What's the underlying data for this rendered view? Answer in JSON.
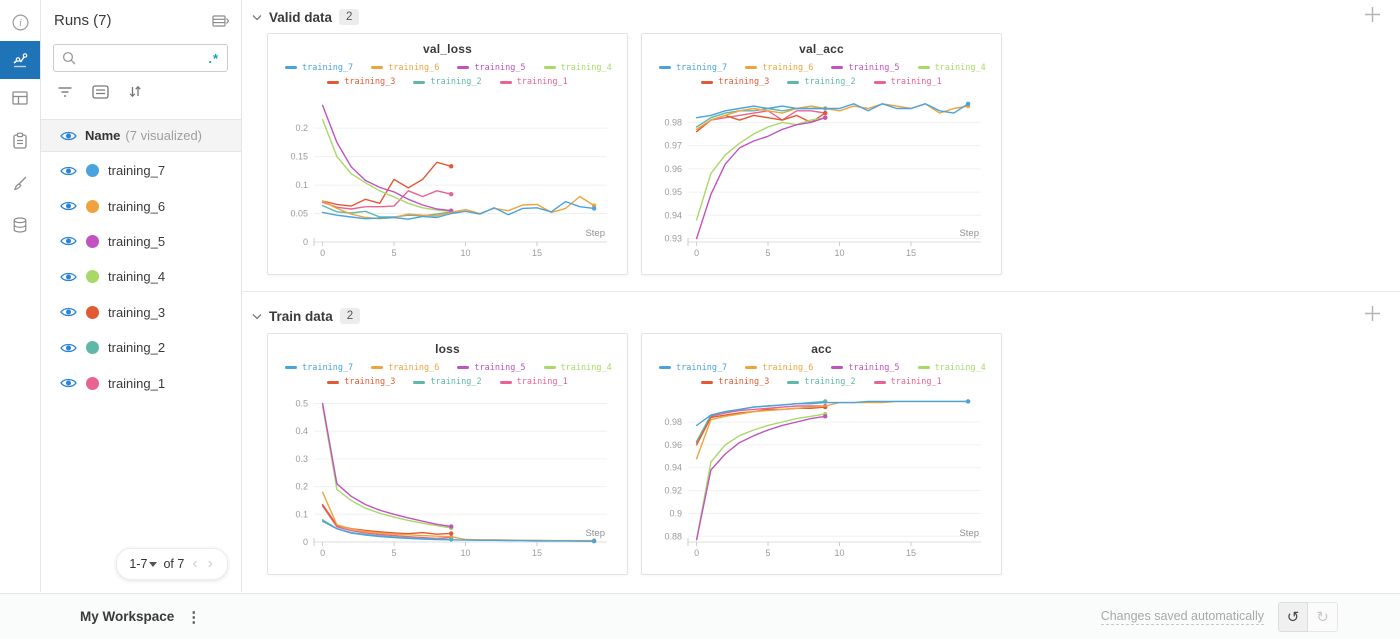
{
  "rail": {
    "icons": [
      "info-icon",
      "line-chart-icon",
      "panel-grid-icon",
      "clipboard-icon",
      "brush-icon",
      "database-icon"
    ],
    "active_color": "#1f73b7"
  },
  "icons": {
    "search-icon": "magnifier",
    "regex-icon": ".*",
    "filter-icon": "funnel-lines",
    "list-icon": "boxed-list",
    "sort-icon": "down-up-arrows",
    "eye-icon": "blue-eye",
    "chevron-down-icon": "v",
    "chevron-right-icon": "›",
    "chevron-left-icon": "‹",
    "plus-icon": "+",
    "kebab-icon": "⋮",
    "undo-icon": "↺",
    "redo-icon": "↻",
    "caret-down-icon": "▾",
    "table-expand-icon": "table+chevron"
  },
  "runs_panel": {
    "title": "Runs (7)",
    "search": {
      "placeholder": "",
      "regex_badge": ".*"
    },
    "header_row": {
      "label": "Name",
      "annotation": "(7 visualized)"
    },
    "runs": [
      {
        "name": "training_7",
        "color": "#4aa3df"
      },
      {
        "name": "training_6",
        "color": "#eea43c"
      },
      {
        "name": "training_5",
        "color": "#c153c1"
      },
      {
        "name": "training_4",
        "color": "#a8d966"
      },
      {
        "name": "training_3",
        "color": "#e25a33"
      },
      {
        "name": "training_2",
        "color": "#5fb8a6"
      },
      {
        "name": "training_1",
        "color": "#e8638f"
      }
    ],
    "pagination": {
      "range_label": "1-7",
      "of_label": "of 7"
    }
  },
  "sections": [
    {
      "title": "Valid data",
      "count": "2"
    },
    {
      "title": "Train data",
      "count": "2"
    }
  ],
  "footer": {
    "workspace_label": "My Workspace",
    "status_text": "Changes saved automatically"
  },
  "chart_data": [
    {
      "type": "line",
      "title": "val_loss",
      "xlabel": "Step",
      "legend_position": "top",
      "grid": "horizontal",
      "xticks": [
        0,
        5,
        10,
        15
      ],
      "xlim": [
        -0.6,
        19.9
      ],
      "yticks": [
        0,
        0.05,
        0.1,
        0.15,
        0.2
      ],
      "ylim": [
        0,
        0.253
      ],
      "series": [
        {
          "name": "training_7",
          "color": "#4aa3df",
          "values": [
            0.052,
            0.047,
            0.044,
            0.041,
            0.042,
            0.043,
            0.04,
            0.045,
            0.043,
            0.05,
            0.054,
            0.049,
            0.06,
            0.048,
            0.059,
            0.06,
            0.053,
            0.071,
            0.062,
            0.059
          ]
        },
        {
          "name": "training_6",
          "color": "#eea43c",
          "values": [
            0.072,
            0.059,
            0.049,
            0.043,
            0.041,
            0.043,
            0.049,
            0.047,
            0.046,
            0.052,
            0.057,
            0.05,
            0.059,
            0.055,
            0.065,
            0.066,
            0.052,
            0.059,
            0.08,
            0.064
          ]
        },
        {
          "name": "training_5",
          "color": "#c153c1",
          "values": [
            0.24,
            0.175,
            0.132,
            0.108,
            0.096,
            0.088,
            0.075,
            0.065,
            0.058,
            0.055
          ]
        },
        {
          "name": "training_4",
          "color": "#a8d966",
          "values": [
            0.215,
            0.15,
            0.12,
            0.104,
            0.09,
            0.079,
            0.068,
            0.06,
            0.056,
            0.054
          ]
        },
        {
          "name": "training_3",
          "color": "#e25a33",
          "values": [
            0.072,
            0.066,
            0.063,
            0.075,
            0.068,
            0.11,
            0.095,
            0.11,
            0.14,
            0.133
          ]
        },
        {
          "name": "training_2",
          "color": "#5fb8a6",
          "values": [
            0.064,
            0.053,
            0.051,
            0.054,
            0.044,
            0.044,
            0.047,
            0.046,
            0.049,
            0.053
          ]
        },
        {
          "name": "training_1",
          "color": "#e8638f",
          "values": [
            0.07,
            0.061,
            0.058,
            0.062,
            0.062,
            0.063,
            0.09,
            0.08,
            0.09,
            0.084
          ]
        }
      ]
    },
    {
      "type": "line",
      "title": "val_acc",
      "xlabel": "Step",
      "legend_position": "top",
      "grid": "horizontal",
      "xticks": [
        0,
        5,
        10,
        15
      ],
      "xlim": [
        -0.6,
        19.9
      ],
      "yticks": [
        0.93,
        0.94,
        0.95,
        0.96,
        0.97,
        0.98
      ],
      "ylim": [
        0.9285,
        0.9905
      ],
      "series": [
        {
          "name": "training_7",
          "color": "#4aa3df",
          "values": [
            0.982,
            0.983,
            0.985,
            0.986,
            0.987,
            0.986,
            0.987,
            0.986,
            0.986,
            0.986,
            0.986,
            0.988,
            0.985,
            0.988,
            0.986,
            0.986,
            0.988,
            0.985,
            0.984,
            0.988
          ]
        },
        {
          "name": "training_6",
          "color": "#eea43c",
          "values": [
            0.977,
            0.981,
            0.983,
            0.985,
            0.986,
            0.985,
            0.984,
            0.986,
            0.987,
            0.986,
            0.985,
            0.987,
            0.986,
            0.988,
            0.987,
            0.986,
            0.988,
            0.984,
            0.986,
            0.987
          ]
        },
        {
          "name": "training_5",
          "color": "#c153c1",
          "values": [
            0.93,
            0.949,
            0.962,
            0.969,
            0.972,
            0.974,
            0.977,
            0.979,
            0.98,
            0.982
          ]
        },
        {
          "name": "training_4",
          "color": "#a8d966",
          "values": [
            0.938,
            0.958,
            0.966,
            0.971,
            0.975,
            0.978,
            0.98,
            0.979,
            0.981,
            0.982
          ]
        },
        {
          "name": "training_3",
          "color": "#e25a33",
          "values": [
            0.976,
            0.981,
            0.983,
            0.981,
            0.983,
            0.982,
            0.981,
            0.983,
            0.98,
            0.984
          ]
        },
        {
          "name": "training_2",
          "color": "#5fb8a6",
          "values": [
            0.978,
            0.982,
            0.984,
            0.985,
            0.985,
            0.986,
            0.985,
            0.986,
            0.986,
            0.986
          ]
        },
        {
          "name": "training_1",
          "color": "#e8638f",
          "values": [
            0.977,
            0.981,
            0.982,
            0.983,
            0.984,
            0.985,
            0.981,
            0.985,
            0.985,
            0.984
          ]
        }
      ]
    },
    {
      "type": "line",
      "title": "loss",
      "xlabel": "Step",
      "legend_position": "top",
      "grid": "horizontal",
      "xticks": [
        0,
        5,
        10,
        15
      ],
      "xlim": [
        -0.6,
        19.9
      ],
      "yticks": [
        0,
        0.1,
        0.2,
        0.3,
        0.4,
        0.5
      ],
      "ylim": [
        0,
        0.52
      ],
      "series": [
        {
          "name": "training_7",
          "color": "#4aa3df",
          "values": [
            0.075,
            0.048,
            0.032,
            0.025,
            0.02,
            0.016,
            0.013,
            0.011,
            0.009,
            0.008,
            0.007,
            0.006,
            0.006,
            0.005,
            0.005,
            0.004,
            0.004,
            0.004,
            0.003,
            0.003
          ]
        },
        {
          "name": "training_6",
          "color": "#eea43c",
          "values": [
            0.18,
            0.062,
            0.047,
            0.038,
            0.032,
            0.028,
            0.026,
            0.023,
            0.021,
            0.019,
            0.009,
            0.008,
            0.008,
            0.007,
            0.006,
            0.006,
            0.005,
            0.005,
            0.005,
            0.005
          ]
        },
        {
          "name": "training_5",
          "color": "#c153c1",
          "values": [
            0.5,
            0.21,
            0.165,
            0.135,
            0.115,
            0.1,
            0.087,
            0.075,
            0.064,
            0.056
          ]
        },
        {
          "name": "training_4",
          "color": "#a8d966",
          "values": [
            0.49,
            0.19,
            0.15,
            0.122,
            0.104,
            0.09,
            0.078,
            0.068,
            0.059,
            0.051
          ]
        },
        {
          "name": "training_3",
          "color": "#e25a33",
          "values": [
            0.135,
            0.06,
            0.048,
            0.042,
            0.037,
            0.033,
            0.03,
            0.034,
            0.028,
            0.031
          ]
        },
        {
          "name": "training_2",
          "color": "#5fb8a6",
          "values": [
            0.08,
            0.048,
            0.034,
            0.027,
            0.022,
            0.018,
            0.015,
            0.012,
            0.01,
            0.009
          ]
        },
        {
          "name": "training_1",
          "color": "#e8638f",
          "values": [
            0.13,
            0.055,
            0.041,
            0.033,
            0.027,
            0.023,
            0.019,
            0.016,
            0.013,
            0.017
          ]
        }
      ]
    },
    {
      "type": "line",
      "title": "acc",
      "xlabel": "Step",
      "legend_position": "top",
      "grid": "horizontal",
      "xticks": [
        0,
        5,
        10,
        15
      ],
      "xlim": [
        -0.6,
        19.9
      ],
      "yticks": [
        0.88,
        0.9,
        0.92,
        0.94,
        0.96,
        0.98
      ],
      "ylim": [
        0.875,
        1.001
      ],
      "series": [
        {
          "name": "training_7",
          "color": "#4aa3df",
          "values": [
            0.977,
            0.986,
            0.989,
            0.991,
            0.993,
            0.994,
            0.995,
            0.996,
            0.996,
            0.997,
            0.997,
            0.997,
            0.998,
            0.998,
            0.998,
            0.998,
            0.998,
            0.998,
            0.998,
            0.998
          ]
        },
        {
          "name": "training_6",
          "color": "#eea43c",
          "values": [
            0.948,
            0.982,
            0.985,
            0.987,
            0.989,
            0.99,
            0.991,
            0.992,
            0.993,
            0.994,
            0.997,
            0.997,
            0.997,
            0.997,
            0.998,
            0.998,
            0.998,
            0.998,
            0.998,
            0.998
          ]
        },
        {
          "name": "training_5",
          "color": "#c153c1",
          "values": [
            0.877,
            0.938,
            0.952,
            0.962,
            0.968,
            0.973,
            0.977,
            0.98,
            0.983,
            0.985
          ]
        },
        {
          "name": "training_4",
          "color": "#a8d966",
          "values": [
            0.877,
            0.945,
            0.96,
            0.968,
            0.973,
            0.977,
            0.98,
            0.983,
            0.985,
            0.987
          ]
        },
        {
          "name": "training_3",
          "color": "#e25a33",
          "values": [
            0.96,
            0.984,
            0.986,
            0.988,
            0.989,
            0.991,
            0.991,
            0.992,
            0.992,
            0.993
          ]
        },
        {
          "name": "training_2",
          "color": "#5fb8a6",
          "values": [
            0.963,
            0.986,
            0.989,
            0.991,
            0.993,
            0.994,
            0.995,
            0.996,
            0.997,
            0.998
          ]
        },
        {
          "name": "training_1",
          "color": "#e8638f",
          "values": [
            0.962,
            0.985,
            0.988,
            0.99,
            0.991,
            0.992,
            0.993,
            0.994,
            0.994,
            0.994
          ]
        }
      ]
    }
  ]
}
